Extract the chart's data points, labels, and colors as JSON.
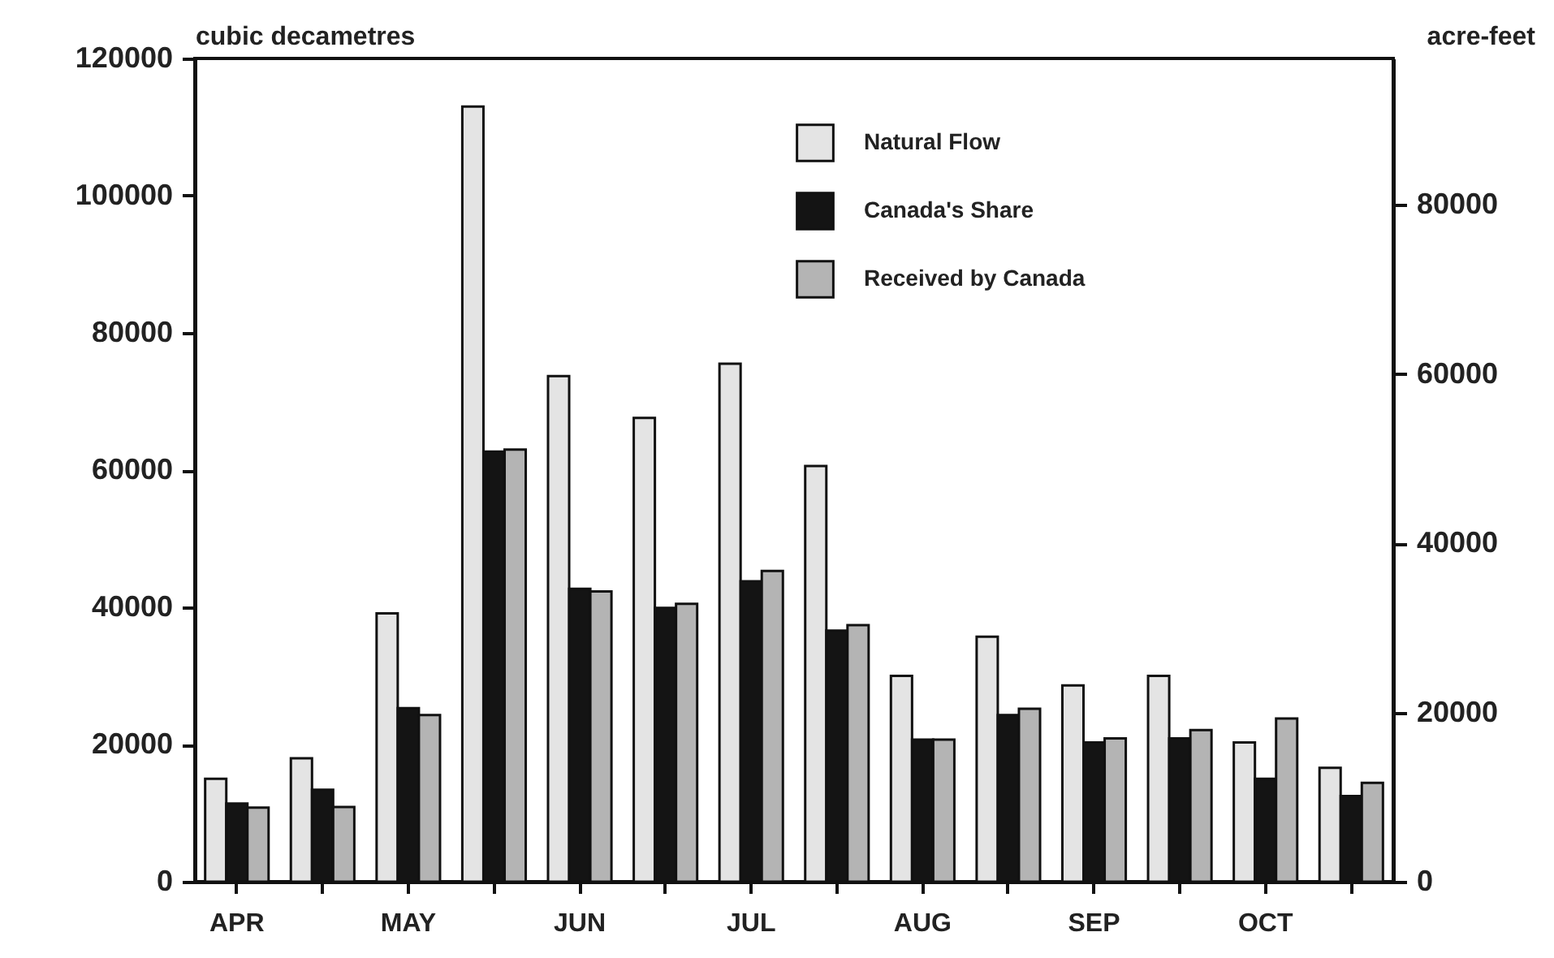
{
  "chart_data": {
    "type": "bar",
    "ylabel": "cubic decametres",
    "y2label": "acre-feet",
    "categories": [
      "APR",
      null,
      "MAY",
      null,
      "JUN",
      null,
      "JUL",
      null,
      "AUG",
      null,
      "SEP",
      null,
      "OCT",
      null
    ],
    "series": [
      {
        "name": "Natural Flow",
        "color": "#e4e4e4",
        "values": [
          15000,
          18000,
          39100,
          113000,
          73700,
          67600,
          75500,
          60600,
          30000,
          35700,
          28600,
          30000,
          20300,
          16600
        ]
      },
      {
        "name": "Canada's Share",
        "color": "#141414",
        "values": [
          11400,
          13400,
          25300,
          62700,
          42700,
          39900,
          43800,
          36600,
          20700,
          24300,
          20300,
          20900,
          15000,
          12500
        ]
      },
      {
        "name": "Received by Canada",
        "color": "#b4b4b4",
        "values": [
          10800,
          10900,
          24300,
          63000,
          42300,
          40500,
          45300,
          37400,
          20700,
          25200,
          20900,
          22100,
          23800,
          14400
        ]
      }
    ],
    "ylim": [
      0,
      120000
    ],
    "yticks": [
      0,
      20000,
      40000,
      60000,
      80000,
      100000,
      120000
    ],
    "y2lim": [
      0,
      97300
    ],
    "y2ticks": [
      0,
      20000,
      40000,
      60000,
      80000
    ],
    "grid": false,
    "legend": "top right"
  }
}
